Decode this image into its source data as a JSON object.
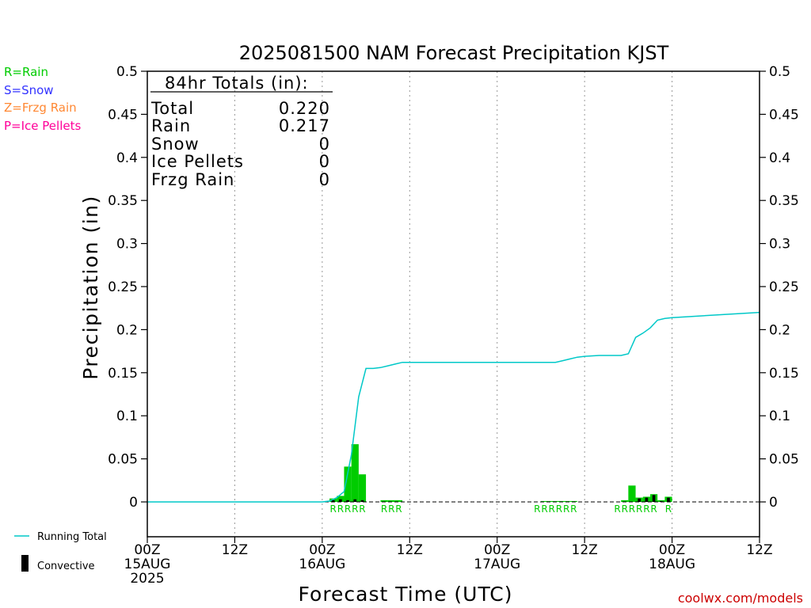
{
  "chart_data": {
    "type": "bar",
    "title": "2025081500 NAM Forecast Precipitation KJST",
    "xlabel": "Forecast Time (UTC)",
    "ylabel": "Precipitation (in)",
    "ylim": [
      0,
      0.5
    ],
    "yticks": [
      "0.5",
      "0.45",
      "0.4",
      "0.35",
      "0.3",
      "0.25",
      "0.2",
      "0.15",
      "0.1",
      "0.05",
      "0"
    ],
    "xlim_hours": [
      0,
      84
    ],
    "xticks": [
      {
        "h": 0,
        "l1": "00Z",
        "l2": "15AUG",
        "l3": "2025"
      },
      {
        "h": 12,
        "l1": "12Z",
        "l2": "",
        "l3": ""
      },
      {
        "h": 24,
        "l1": "00Z",
        "l2": "16AUG",
        "l3": ""
      },
      {
        "h": 36,
        "l1": "12Z",
        "l2": "",
        "l3": ""
      },
      {
        "h": 48,
        "l1": "00Z",
        "l2": "17AUG",
        "l3": ""
      },
      {
        "h": 60,
        "l1": "12Z",
        "l2": "",
        "l3": ""
      },
      {
        "h": 72,
        "l1": "00Z",
        "l2": "18AUG",
        "l3": ""
      },
      {
        "h": 84,
        "l1": "12Z",
        "l2": "",
        "l3": ""
      }
    ],
    "legend": {
      "rain": "R=Rain",
      "snow": "S=Snow",
      "frzg": "Z=Frzg Rain",
      "ice": "P=Ice Pellets",
      "running_total": "Running Total",
      "convective": "Convective"
    },
    "totals": {
      "header": "84hr Totals (in):",
      "rows": [
        {
          "label": "Total",
          "value": "0.220"
        },
        {
          "label": "Rain",
          "value": "0.217"
        },
        {
          "label": "Snow",
          "value": "0"
        },
        {
          "label": "Ice Pellets",
          "value": "0"
        },
        {
          "label": "Frzg Rain",
          "value": "0"
        }
      ]
    },
    "bars": [
      {
        "h": 26,
        "total": 0.004,
        "conv": 0.002
      },
      {
        "h": 27,
        "total": 0.007,
        "conv": 0.003
      },
      {
        "h": 28,
        "total": 0.041,
        "conv": 0.002
      },
      {
        "h": 29,
        "total": 0.067,
        "conv": 0.003
      },
      {
        "h": 30,
        "total": 0.032,
        "conv": 0.002
      },
      {
        "h": 33,
        "total": 0.002,
        "conv": 0.0
      },
      {
        "h": 34,
        "total": 0.002,
        "conv": 0.0
      },
      {
        "h": 35,
        "total": 0.002,
        "conv": 0.0
      },
      {
        "h": 55,
        "total": 0.001,
        "conv": 0.0
      },
      {
        "h": 56,
        "total": 0.001,
        "conv": 0.0
      },
      {
        "h": 57,
        "total": 0.001,
        "conv": 0.0
      },
      {
        "h": 58,
        "total": 0.001,
        "conv": 0.0
      },
      {
        "h": 59,
        "total": 0.001,
        "conv": 0.0
      },
      {
        "h": 66,
        "total": 0.002,
        "conv": 0.0
      },
      {
        "h": 67,
        "total": 0.019,
        "conv": 0.0
      },
      {
        "h": 68,
        "total": 0.005,
        "conv": 0.004
      },
      {
        "h": 69,
        "total": 0.006,
        "conv": 0.005
      },
      {
        "h": 70,
        "total": 0.009,
        "conv": 0.008
      },
      {
        "h": 71,
        "total": 0.002,
        "conv": 0.001
      },
      {
        "h": 72,
        "total": 0.006,
        "conv": 0.005
      }
    ],
    "running_total": {
      "h": [
        0,
        24,
        25,
        26,
        27,
        28,
        29,
        30,
        31,
        32,
        33,
        34,
        35,
        36,
        40,
        48,
        52,
        54,
        56,
        57,
        58,
        59,
        60,
        62,
        63,
        64,
        65,
        66,
        67,
        68,
        69,
        70,
        71,
        72,
        84
      ],
      "v": [
        0,
        0,
        0.001,
        0.005,
        0.012,
        0.055,
        0.122,
        0.155,
        0.155,
        0.156,
        0.158,
        0.16,
        0.162,
        0.162,
        0.162,
        0.162,
        0.162,
        0.162,
        0.162,
        0.164,
        0.166,
        0.168,
        0.169,
        0.17,
        0.17,
        0.17,
        0.17,
        0.172,
        0.191,
        0.196,
        0.202,
        0.211,
        0.213,
        0.214,
        0.22
      ]
    },
    "precip_type_labels": [
      {
        "h": 26,
        "label": "R"
      },
      {
        "h": 27,
        "label": "R"
      },
      {
        "h": 28,
        "label": "R"
      },
      {
        "h": 29,
        "label": "R"
      },
      {
        "h": 30,
        "label": "R"
      },
      {
        "h": 33,
        "label": "R"
      },
      {
        "h": 34,
        "label": "R"
      },
      {
        "h": 35,
        "label": "R"
      },
      {
        "h": 54,
        "label": "R"
      },
      {
        "h": 55,
        "label": "R"
      },
      {
        "h": 56,
        "label": "R"
      },
      {
        "h": 57,
        "label": "R"
      },
      {
        "h": 58,
        "label": "R"
      },
      {
        "h": 59,
        "label": "R"
      },
      {
        "h": 65,
        "label": "R"
      },
      {
        "h": 66,
        "label": "R"
      },
      {
        "h": 67,
        "label": "R"
      },
      {
        "h": 68,
        "label": "R"
      },
      {
        "h": 69,
        "label": "R"
      },
      {
        "h": 70,
        "label": "R"
      },
      {
        "h": 72,
        "label": "R"
      }
    ],
    "colors": {
      "rain": "#00cc00",
      "snow": "#3333ff",
      "frzg": "#ff8833",
      "ice": "#ff0099",
      "running_total": "#00c8c8",
      "convective": "#000000",
      "credit": "#cc0000"
    },
    "credit": "coolwx.com/models"
  }
}
